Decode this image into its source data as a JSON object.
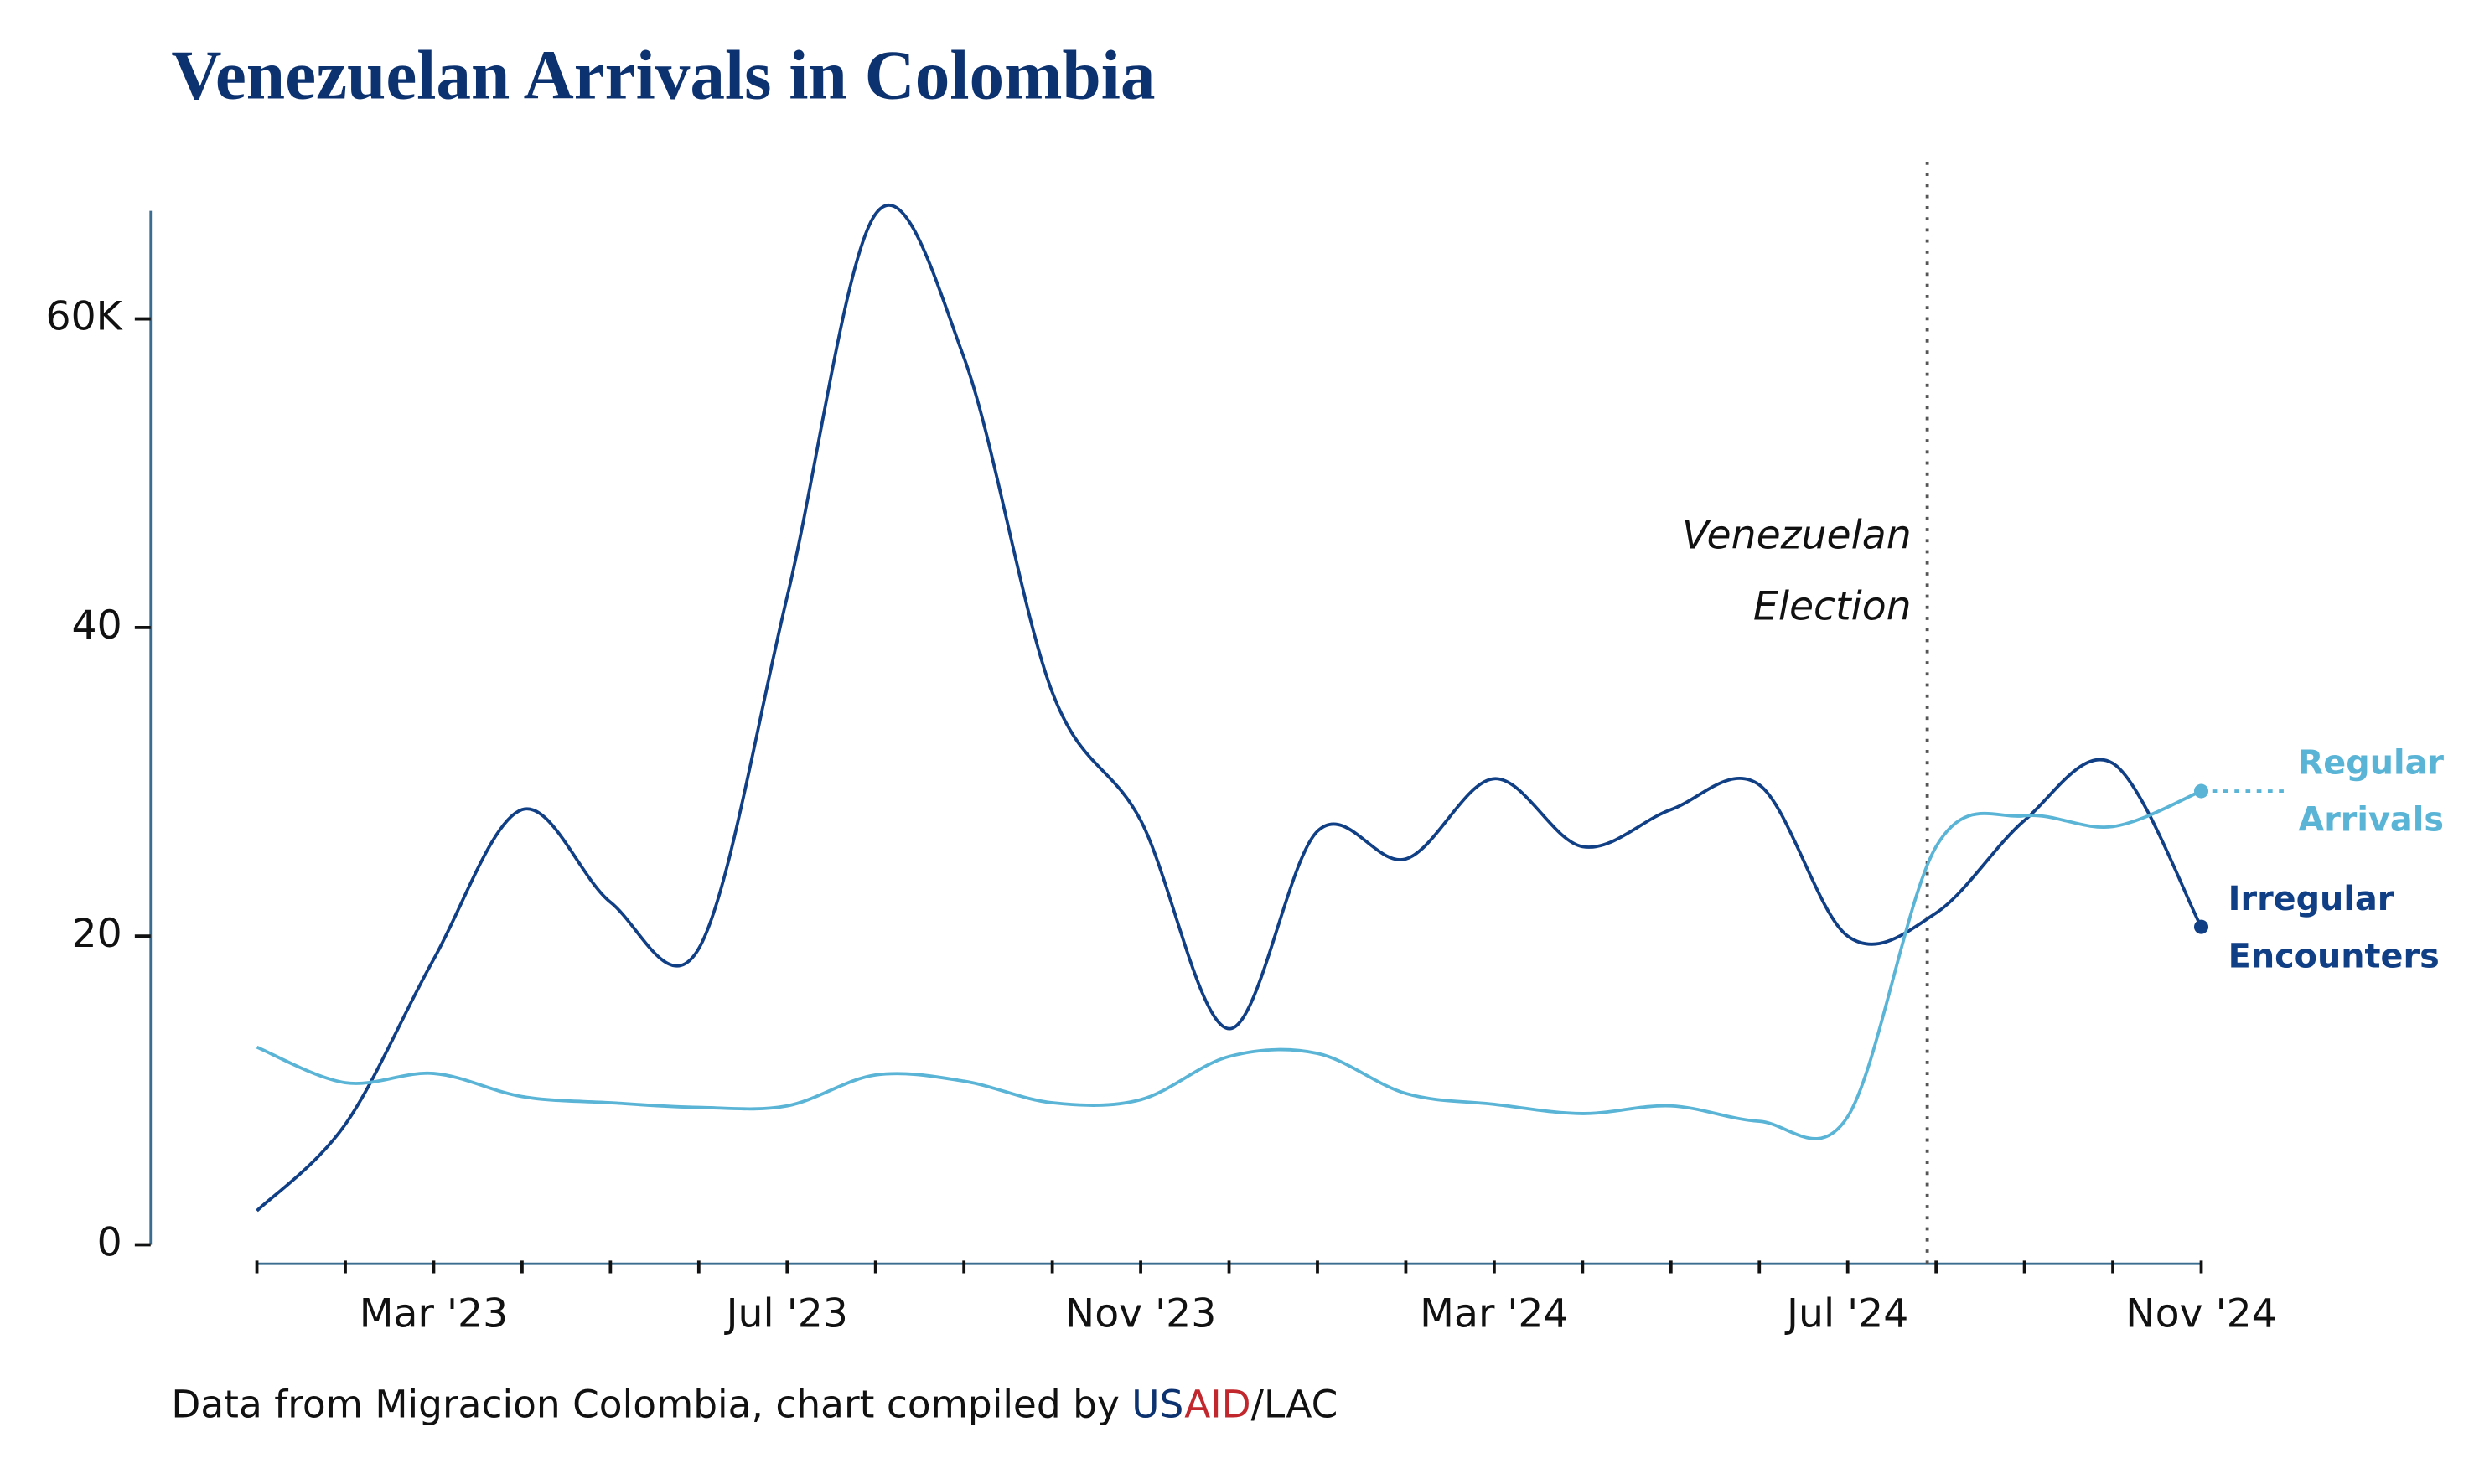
{
  "chart_data": {
    "type": "line",
    "title": "Venezuelan Arrivals in Colombia",
    "categories": [
      null,
      null,
      "Mar '23",
      null,
      null,
      null,
      "Jul '23",
      null,
      null,
      null,
      "Nov '23",
      null,
      null,
      null,
      "Mar '24",
      null,
      null,
      null,
      "Jul '24",
      null,
      null,
      null,
      "Nov '24"
    ],
    "series": [
      {
        "name": "Irregular Encounters",
        "color": "#113f86",
        "values": [
          2.2,
          7.8,
          18.5,
          28.2,
          22.2,
          19.2,
          42,
          66.8,
          57.5,
          35.8,
          27.5,
          14,
          26.8,
          25,
          30.2,
          25.8,
          28.2,
          29.8,
          20,
          21.5,
          27.5,
          31.2,
          20.6
        ]
      },
      {
        "name": "Regular Arrivals",
        "color": "#5ab4d6",
        "values": [
          12.8,
          10.5,
          11.1,
          9.6,
          9.2,
          8.9,
          9.0,
          11.0,
          10.6,
          9.2,
          9.4,
          12.2,
          12.4,
          9.8,
          9.1,
          8.5,
          9.0,
          8.0,
          8.3,
          25.8,
          27.8,
          27.1,
          29.4
        ]
      }
    ],
    "ylim": [
      0,
      67
    ],
    "yticks": [
      0,
      20,
      40,
      {
        "value": 60,
        "label": "60K"
      }
    ],
    "annotation": {
      "lines": [
        "Venezuelan",
        "Election"
      ],
      "x": 18.9
    },
    "source": [
      {
        "text": "Data from Migracion Colombia, chart compiled by ",
        "color": "#111111"
      },
      {
        "text": "US",
        "color": "#0d3270"
      },
      {
        "text": "AID",
        "color": "#c1272d"
      },
      {
        "text": "/LAC",
        "color": "#111111"
      }
    ]
  }
}
